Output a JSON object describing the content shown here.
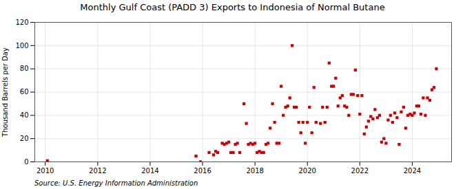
{
  "chart_data": {
    "type": "scatter",
    "title": "Monthly Gulf Coast (PADD 3) Exports to Indonesia of Normal Butane",
    "ylabel": "Thousand Barrels per Day",
    "annotations": [
      "Source: U.S. Energy Information Administration"
    ],
    "color": "#cc0000",
    "marker": "square",
    "grid": true,
    "xlim": [
      2009.6,
      2025.5
    ],
    "xticks": [
      2010,
      2012,
      2014,
      2016,
      2018,
      2020,
      2022,
      2024
    ],
    "ylim": [
      0,
      120
    ],
    "yticks": [
      0,
      20,
      40,
      60,
      80,
      100,
      120
    ],
    "x": [
      2010.08,
      2015.75,
      2015.92,
      2016.25,
      2016.42,
      2016.5,
      2016.58,
      2016.75,
      2016.83,
      2016.92,
      2017.0,
      2017.08,
      2017.17,
      2017.25,
      2017.33,
      2017.42,
      2017.58,
      2017.67,
      2017.75,
      2017.83,
      2017.92,
      2018.0,
      2018.08,
      2018.17,
      2018.25,
      2018.33,
      2018.42,
      2018.5,
      2018.58,
      2018.67,
      2018.75,
      2018.83,
      2018.92,
      2019.0,
      2019.08,
      2019.17,
      2019.25,
      2019.33,
      2019.42,
      2019.5,
      2019.58,
      2019.67,
      2019.75,
      2019.83,
      2019.92,
      2020.0,
      2020.08,
      2020.17,
      2020.25,
      2020.33,
      2020.5,
      2020.58,
      2020.67,
      2020.75,
      2020.83,
      2020.92,
      2021.0,
      2021.08,
      2021.17,
      2021.25,
      2021.33,
      2021.42,
      2021.5,
      2021.58,
      2021.67,
      2021.75,
      2021.83,
      2021.92,
      2022.0,
      2022.08,
      2022.17,
      2022.25,
      2022.33,
      2022.42,
      2022.5,
      2022.58,
      2022.67,
      2022.75,
      2022.83,
      2022.92,
      2023.0,
      2023.08,
      2023.17,
      2023.25,
      2023.33,
      2023.42,
      2023.5,
      2023.58,
      2023.67,
      2023.75,
      2023.83,
      2023.92,
      2024.0,
      2024.08,
      2024.17,
      2024.25,
      2024.33,
      2024.42,
      2024.5,
      2024.58,
      2024.67,
      2024.75,
      2024.83,
      2024.92
    ],
    "values": [
      1,
      5,
      0,
      8,
      6,
      9,
      8,
      16,
      15,
      16,
      17,
      8,
      8,
      15,
      16,
      8,
      50,
      33,
      15,
      16,
      15,
      16,
      8,
      9,
      8,
      8,
      15,
      16,
      29,
      50,
      34,
      16,
      16,
      65,
      40,
      47,
      48,
      55,
      100,
      47,
      47,
      34,
      25,
      34,
      16,
      34,
      47,
      25,
      64,
      34,
      33,
      47,
      34,
      47,
      85,
      65,
      65,
      72,
      48,
      55,
      57,
      48,
      47,
      40,
      58,
      58,
      79,
      57,
      41,
      57,
      24,
      30,
      35,
      39,
      37,
      45,
      38,
      40,
      17,
      20,
      16,
      36,
      40,
      34,
      42,
      38,
      15,
      43,
      47,
      29,
      40,
      41,
      40,
      42,
      48,
      48,
      41,
      55,
      40,
      55,
      53,
      62,
      64,
      80
    ]
  }
}
